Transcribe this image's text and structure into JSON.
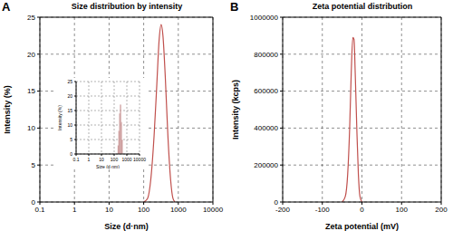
{
  "chart_data": [
    {
      "type": "line",
      "title": "Size distribution by intensity",
      "annotations": [
        "A"
      ],
      "xlabel": "Size (d·nm)",
      "ylabel": "Intensity (%)",
      "x": [
        100,
        130,
        160,
        200,
        240,
        280,
        320,
        360,
        420,
        500,
        600,
        700,
        800
      ],
      "values": [
        0,
        0.5,
        3,
        9,
        16,
        22,
        24,
        22.5,
        17,
        9,
        3,
        0.5,
        0
      ],
      "color": "#c0504d",
      "log": "x",
      "xlim": [
        0.1,
        10000
      ],
      "xticks": [
        0.1,
        1,
        10,
        100,
        1000,
        10000
      ],
      "ylim": [
        0,
        25
      ],
      "yticks": [
        0,
        5,
        10,
        15,
        20,
        25
      ],
      "grid": true,
      "inset": {
        "type": "histogram",
        "xlabel": "Size (d·nm)",
        "ylabel": "Intensity (%)",
        "bins": [
          190,
          220,
          255,
          295,
          342,
          396,
          459
        ],
        "counts": [
          3,
          8,
          14,
          17,
          11,
          5
        ],
        "color": "#8b1a1a",
        "log": "x",
        "xlim": [
          0.1,
          10000
        ],
        "xticks": [
          0.1,
          1,
          10,
          100,
          1000,
          10000
        ],
        "ylim": [
          0,
          25
        ],
        "yticks": [
          0,
          5,
          10,
          15,
          20,
          25
        ],
        "grid": true
      }
    },
    {
      "type": "line",
      "title": "Zeta potential distribution",
      "annotations": [
        "B"
      ],
      "xlabel": "Zeta potential (mV)",
      "ylabel": "Intensity (kcps)",
      "x": [
        -50,
        -42,
        -36,
        -31,
        -27,
        -23,
        -20,
        -17,
        -13,
        -9,
        -5,
        0
      ],
      "values": [
        0,
        30000,
        150000,
        400000,
        700000,
        890000,
        880000,
        700000,
        400000,
        150000,
        30000,
        0
      ],
      "color": "#c0504d",
      "xlim": [
        -200,
        200
      ],
      "xticks": [
        -200,
        -100,
        0,
        100,
        200
      ],
      "ylim": [
        0,
        1000000
      ],
      "yticks": [
        0,
        200000,
        400000,
        600000,
        800000,
        1000000
      ],
      "grid": true
    }
  ]
}
